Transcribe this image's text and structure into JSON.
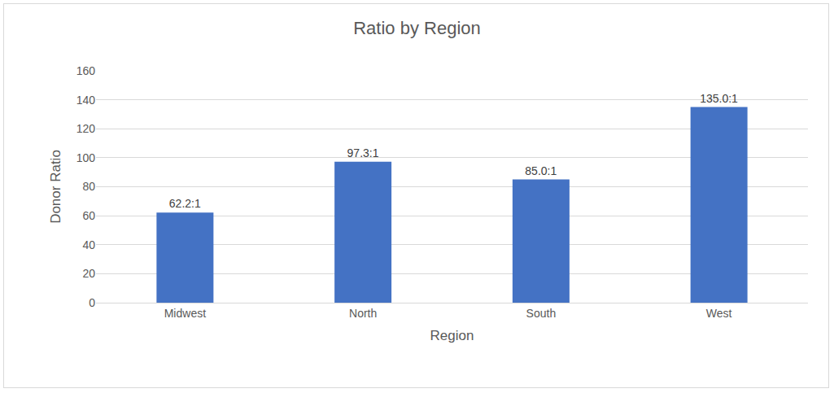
{
  "chart_data": {
    "type": "bar",
    "title": "Ratio by Region",
    "x_label": "Region",
    "y_label": "Donor Ratio",
    "categories": [
      "Midwest",
      "North",
      "South",
      "West"
    ],
    "values": [
      62.2,
      97.3,
      85.0,
      135.0
    ],
    "value_labels": [
      "62.2:1",
      "97.3:1",
      "85.0:1",
      "135.0:1"
    ],
    "data_labels": true,
    "color": "#4472c4",
    "ylim": [
      0,
      160
    ],
    "yticks": [
      0,
      20,
      40,
      60,
      80,
      100,
      120,
      140,
      160
    ],
    "grid": true
  }
}
